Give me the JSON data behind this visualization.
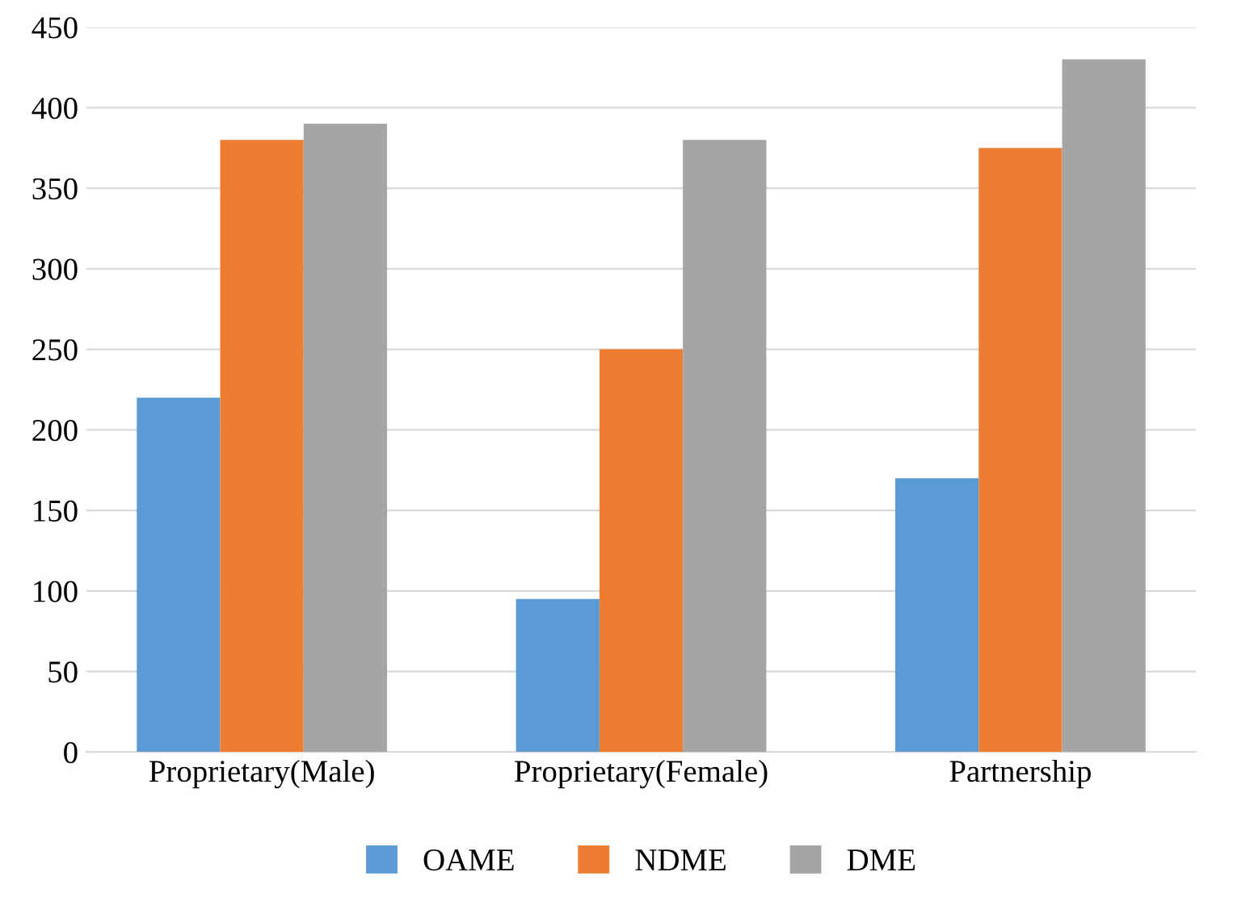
{
  "chart_data": {
    "type": "bar",
    "categories": [
      "Proprietary(Male)",
      "Proprietary(Female)",
      "Partnership"
    ],
    "series": [
      {
        "name": "OAME",
        "color": "#5b9bd5",
        "values": [
          220,
          95,
          170
        ]
      },
      {
        "name": "NDME",
        "color": "#ed7d31",
        "values": [
          380,
          250,
          375
        ]
      },
      {
        "name": "DME",
        "color": "#a5a5a5",
        "values": [
          390,
          380,
          430
        ]
      }
    ],
    "ylim": [
      0,
      450
    ],
    "yticks": [
      0,
      50,
      100,
      150,
      200,
      250,
      300,
      350,
      400,
      450
    ],
    "grid": "y",
    "legend": "bottom"
  }
}
